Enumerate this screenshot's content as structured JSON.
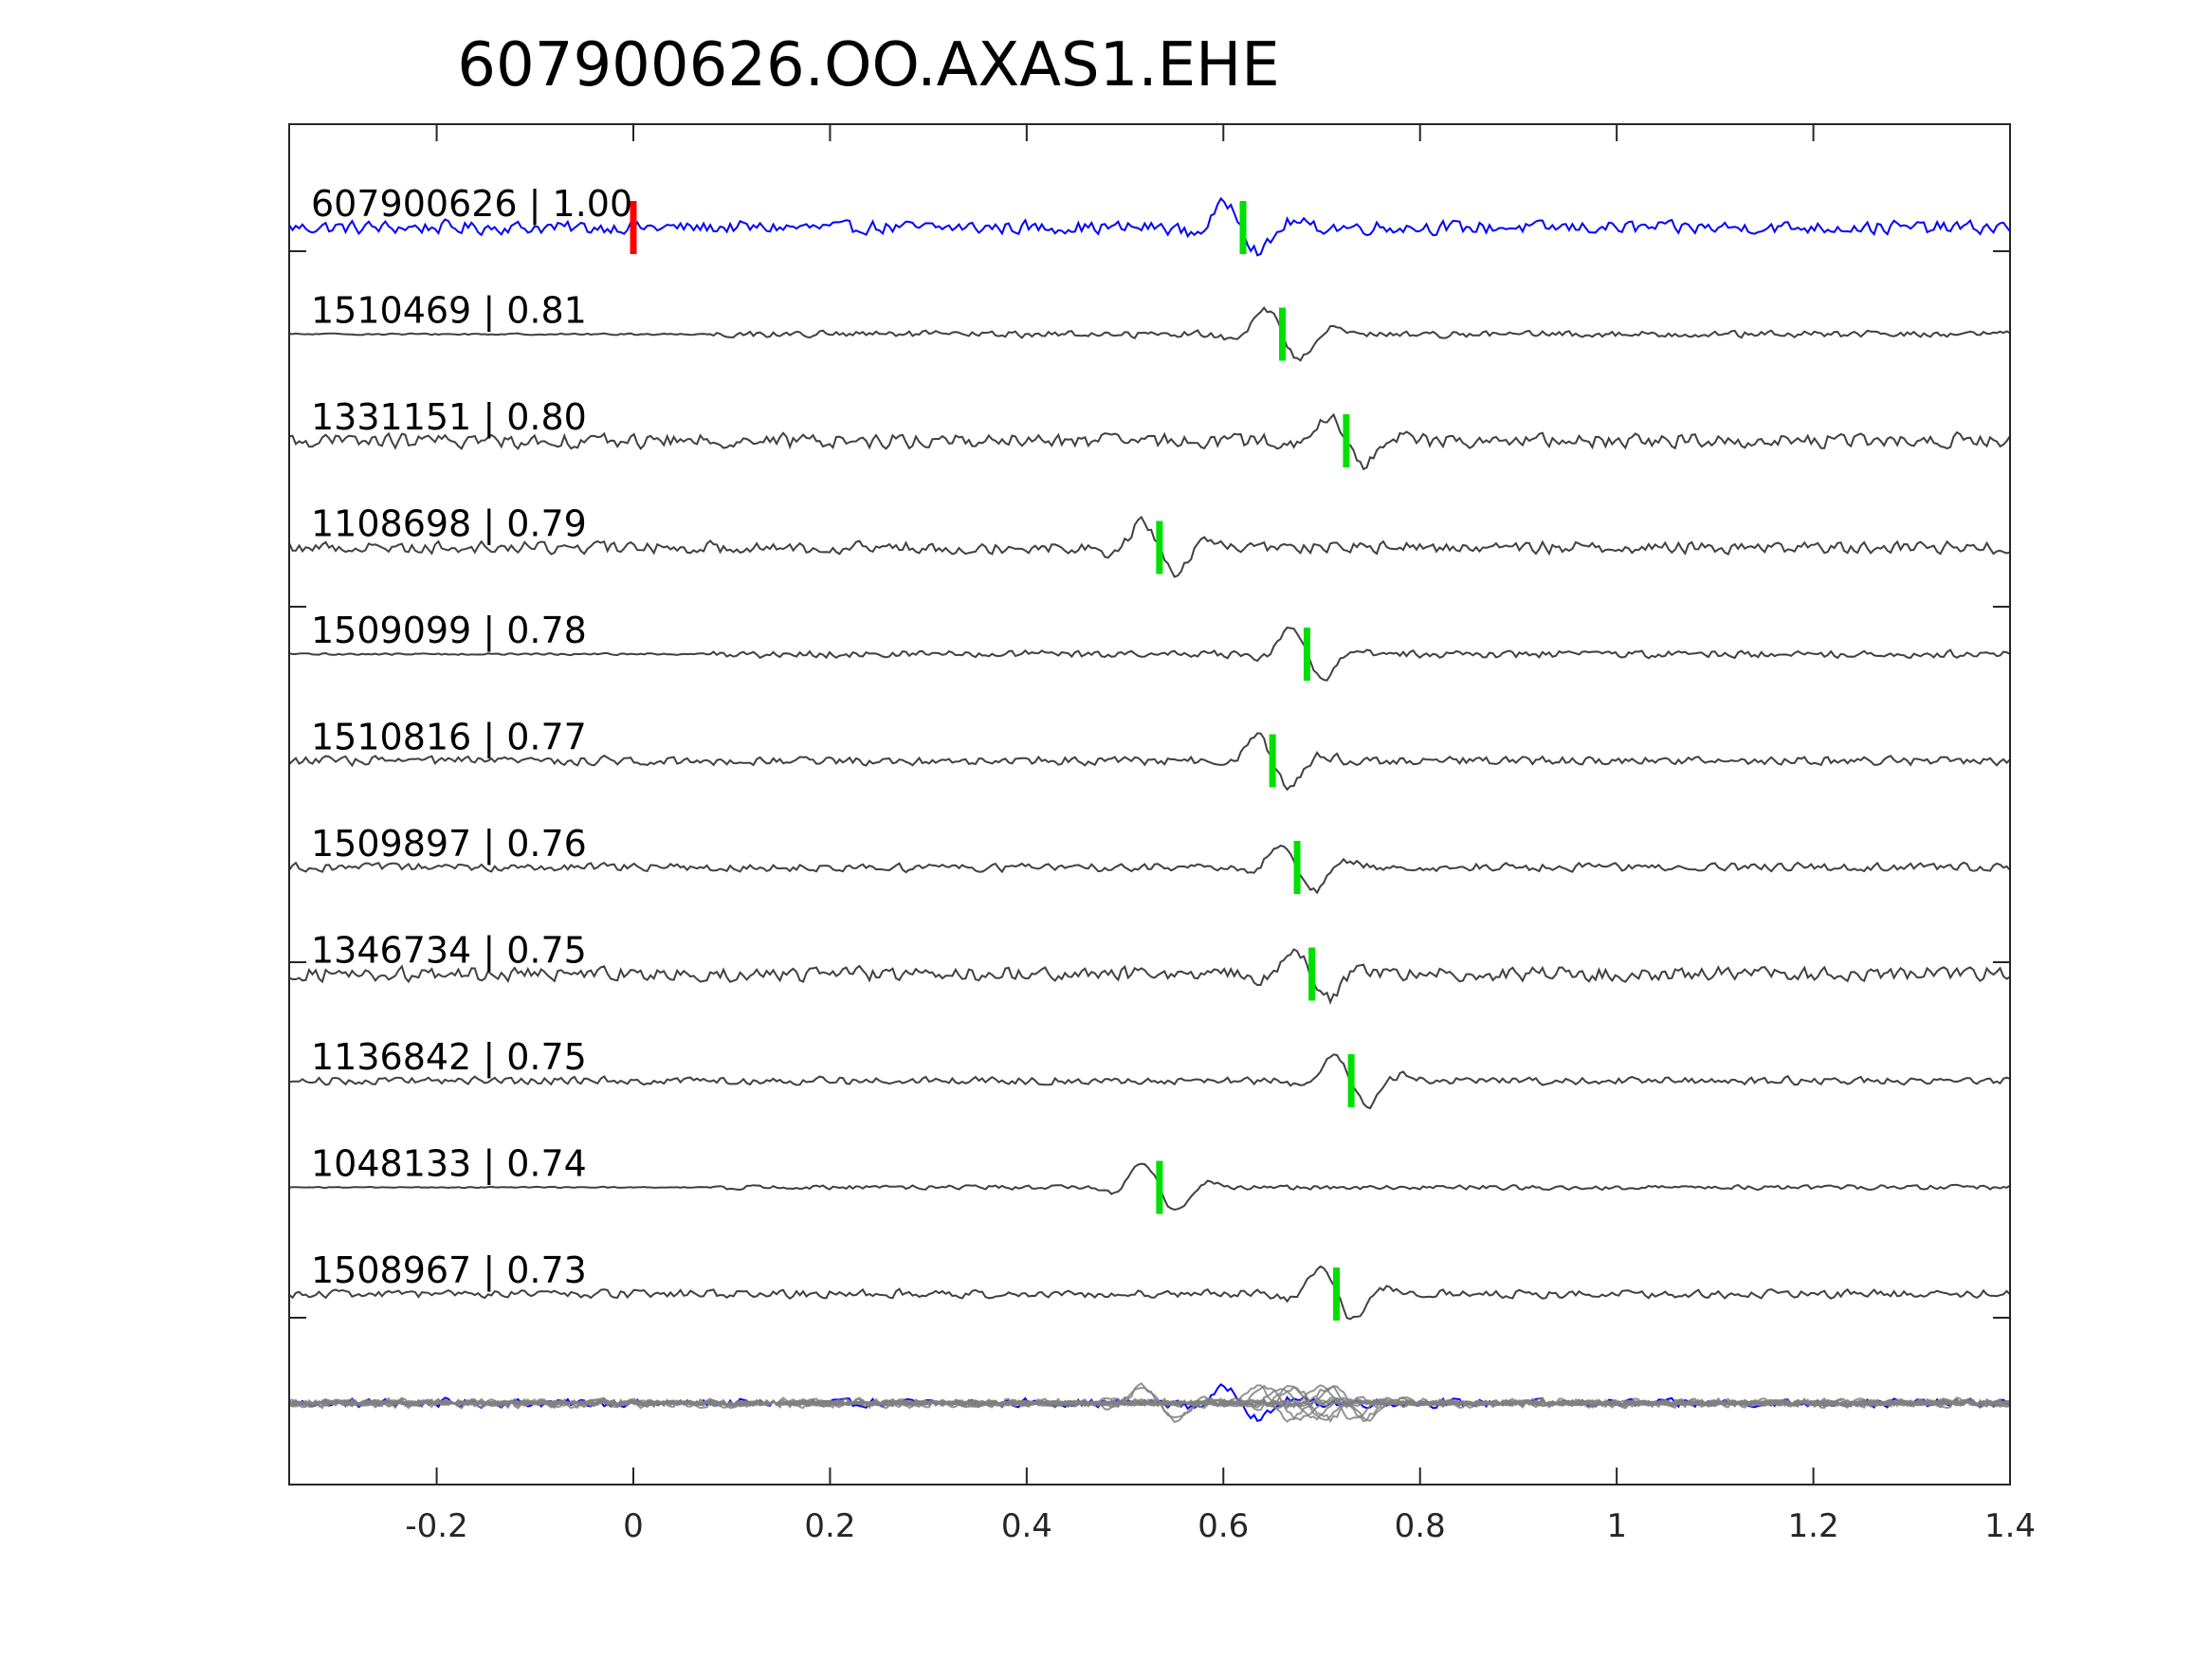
{
  "chart_data": {
    "type": "line",
    "title": "607900626.OO.AXAS1.EHE",
    "xlabel": "",
    "ylabel": "",
    "xlim": [
      -0.35,
      1.4
    ],
    "x_ticks": [
      "-0.2",
      "0",
      "0.2",
      "0.4",
      "0.6",
      "0.8",
      "1",
      "1.2",
      "1.4"
    ],
    "x_tick_values": [
      -0.2,
      0,
      0.2,
      0.4,
      0.6,
      0.8,
      1.0,
      1.2,
      1.4
    ],
    "grid": false,
    "colors": {
      "template": "#0000ff",
      "match": "#404040",
      "stack": "#808080",
      "pick_red": "#ff0000",
      "pick_green": "#00e000",
      "axis": "#262626"
    },
    "template_pick_time": 0.0,
    "traces": [
      {
        "label": "607900626 | 1.00",
        "id": "607900626",
        "cc": 1.0,
        "pick": 0.62,
        "role": "template"
      },
      {
        "label": "1510469 | 0.81",
        "id": "1510469",
        "cc": 0.81,
        "pick": 0.66
      },
      {
        "label": "1331151 | 0.80",
        "id": "1331151",
        "cc": 0.8,
        "pick": 0.725
      },
      {
        "label": "1108698 | 0.79",
        "id": "1108698",
        "cc": 0.79,
        "pick": 0.535
      },
      {
        "label": "1509099 | 0.78",
        "id": "1509099",
        "cc": 0.78,
        "pick": 0.685
      },
      {
        "label": "1510816 | 0.77",
        "id": "1510816",
        "cc": 0.77,
        "pick": 0.65
      },
      {
        "label": "1509897 | 0.76",
        "id": "1509897",
        "cc": 0.76,
        "pick": 0.675
      },
      {
        "label": "1346734 | 0.75",
        "id": "1346734",
        "cc": 0.75,
        "pick": 0.69
      },
      {
        "label": "1136842 | 0.75",
        "id": "1136842",
        "cc": 0.75,
        "pick": 0.73
      },
      {
        "label": "1048133 | 0.74",
        "id": "1048133",
        "cc": 0.74,
        "pick": 0.535
      },
      {
        "label": "1508967 | 0.73",
        "id": "1508967",
        "cc": 0.73,
        "pick": 0.715
      }
    ]
  }
}
